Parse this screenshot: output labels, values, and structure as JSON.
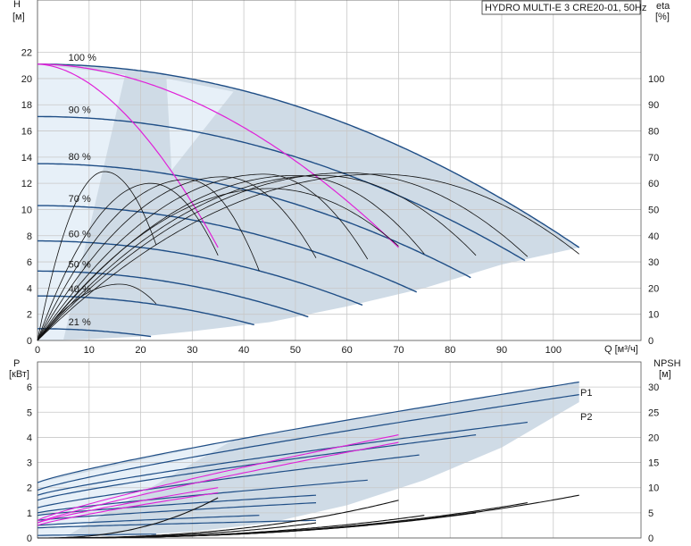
{
  "title": "HYDRO MULTI-E 3 CRE20-01, 50Hz",
  "colors": {
    "envelope": "#cfdbe6",
    "envelope_light": "#e7f0f8",
    "curve": "#1f4e86",
    "highlight": "#e020d8",
    "eff": "#111111",
    "grid": "#c8c8c8"
  },
  "chart_data": [
    {
      "type": "line",
      "name": "head",
      "title": "HYDRO MULTI-E 3 CRE20-01, 50Hz",
      "ylabel": "H",
      "yunit": "[м]",
      "y2label": "eta",
      "y2unit": "[%]",
      "xlabel": "Q [м³/ч]",
      "xlim": [
        0,
        117
      ],
      "ylim": [
        0,
        26
      ],
      "y2lim": [
        0,
        130
      ],
      "xticks": [
        0,
        10,
        20,
        30,
        40,
        50,
        60,
        70,
        80,
        90,
        100
      ],
      "yticks": [
        0,
        2,
        4,
        6,
        8,
        10,
        12,
        14,
        16,
        18,
        20,
        22
      ],
      "y2ticks": [
        0,
        10,
        20,
        30,
        40,
        50,
        60,
        70,
        80,
        90,
        100
      ],
      "grid": true,
      "series": [
        {
          "name": "100 %",
          "label": "100 %",
          "h0": 21.1,
          "qmax": 105,
          "hend": 7.1
        },
        {
          "name": "90 %",
          "label": "90 %",
          "h0": 17.1,
          "qmax": 94.5,
          "hend": 6.1
        },
        {
          "name": "80 %",
          "label": "80 %",
          "h0": 13.5,
          "qmax": 84,
          "hend": 4.8
        },
        {
          "name": "70 %",
          "label": "70 %",
          "h0": 10.3,
          "qmax": 73.5,
          "hend": 3.7
        },
        {
          "name": "60 %",
          "label": "60 %",
          "h0": 7.6,
          "qmax": 63,
          "hend": 2.7
        },
        {
          "name": "50 %",
          "label": "50 %",
          "h0": 5.3,
          "qmax": 52.5,
          "hend": 1.8
        },
        {
          "name": "40 %",
          "label": "40 %",
          "h0": 3.4,
          "qmax": 42,
          "hend": 1.2
        },
        {
          "name": "21 %",
          "label": "21 %",
          "h0": 0.9,
          "qmax": 22,
          "hend": 0.3
        }
      ],
      "highlight_head": [
        {
          "h0": 21.1,
          "qmax": 35,
          "hend": 7.1
        },
        {
          "h0": 21.1,
          "qmax": 70,
          "hend": 7.1
        }
      ],
      "efficiency": [
        {
          "peak": 12.9,
          "qpeak": 13,
          "qmax": 23,
          "eend": 7.3
        },
        {
          "peak": 12.0,
          "qpeak": 22,
          "qmax": 35,
          "eend": 6.5
        },
        {
          "peak": 12.3,
          "qpeak": 29,
          "qmax": 43,
          "eend": 5.3
        },
        {
          "peak": 12.5,
          "qpeak": 36,
          "qmax": 54,
          "eend": 6.3
        },
        {
          "peak": 12.7,
          "qpeak": 44,
          "qmax": 64,
          "eend": 6.2
        },
        {
          "peak": 12.6,
          "qpeak": 50,
          "qmax": 75,
          "eend": 6.6
        },
        {
          "peak": 12.6,
          "qpeak": 55,
          "qmax": 85,
          "eend": 6.5
        },
        {
          "peak": 12.8,
          "qpeak": 60,
          "qmax": 95,
          "eend": 6.4
        },
        {
          "peak": 12.7,
          "qpeak": 66,
          "qmax": 105,
          "eend": 6.6
        },
        {
          "peak": 11.6,
          "qpeak": 45,
          "qmax": 70,
          "eend": 7.2
        },
        {
          "peak": 4.3,
          "qpeak": 16,
          "qmax": 23,
          "eend": 2.8
        }
      ]
    },
    {
      "type": "line",
      "name": "power",
      "ylabel": "P",
      "yunit": "[кВт]",
      "y2label": "NPSH",
      "y2unit": "[м]",
      "xlim": [
        0,
        117
      ],
      "ylim": [
        0,
        7
      ],
      "y2lim": [
        0,
        35
      ],
      "yticks": [
        0,
        1,
        2,
        3,
        4,
        5,
        6
      ],
      "y2ticks": [
        0,
        5,
        10,
        15,
        20,
        25,
        30
      ],
      "grid": true,
      "curve_labels": [
        "P1",
        "P2"
      ],
      "series": [
        {
          "name": "P1",
          "p0": 2.2,
          "qmax": 105,
          "pend": 6.2
        },
        {
          "name": "P2",
          "p0": 1.9,
          "qmax": 105,
          "pend": 5.7
        }
      ],
      "power_curves": [
        {
          "p0": 1.7,
          "qmax": 95,
          "pend": 4.6
        },
        {
          "p0": 1.5,
          "qmax": 85,
          "pend": 4.1
        },
        {
          "p0": 1.2,
          "qmax": 74,
          "pend": 3.3
        },
        {
          "p0": 1.0,
          "qmax": 64,
          "pend": 2.3
        },
        {
          "p0": 0.9,
          "qmax": 54,
          "pend": 1.7
        },
        {
          "p0": 0.7,
          "qmax": 54,
          "pend": 1.4
        },
        {
          "p0": 0.5,
          "qmax": 43,
          "pend": 0.9
        },
        {
          "p0": 0.4,
          "qmax": 54,
          "pend": 0.7
        },
        {
          "p0": 0.1,
          "qmax": 23,
          "pend": 0.15
        }
      ],
      "highlight_power": [
        {
          "p0": 0.7,
          "qmax": 70,
          "pend": 4.1
        },
        {
          "p0": 0.6,
          "qmax": 70,
          "pend": 3.8
        },
        {
          "p0": 0.6,
          "qmax": 35,
          "pend": 2.0
        },
        {
          "p0": 0.5,
          "qmax": 35,
          "pend": 1.8
        }
      ],
      "npsh": [
        {
          "q0": 30,
          "qmax": 35,
          "nend": 8
        },
        {
          "q0": 55,
          "qmax": 70,
          "nend": 7.5
        },
        {
          "q0": 64,
          "qmax": 75,
          "nend": 4.5
        },
        {
          "q0": 74,
          "qmax": 85,
          "nend": 5
        },
        {
          "q0": 84,
          "qmax": 95,
          "nend": 7
        },
        {
          "q0": 95,
          "qmax": 105,
          "nend": 8.5
        },
        {
          "q0": 40,
          "qmax": 54,
          "nend": 3
        },
        {
          "q0": 48,
          "qmax": 64,
          "nend": 2.5
        }
      ]
    }
  ]
}
